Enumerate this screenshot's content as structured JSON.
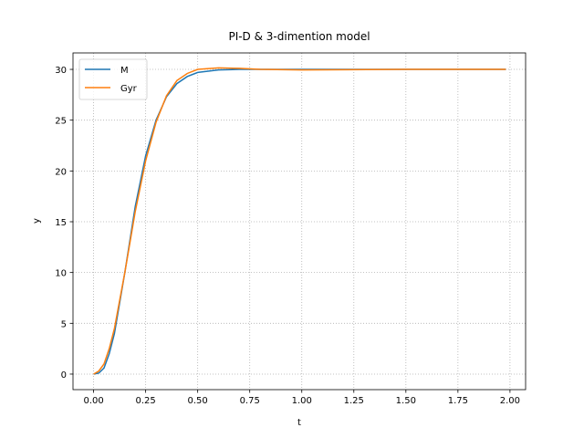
{
  "chart_data": {
    "type": "line",
    "title": "PI-D & 3-dimention model",
    "x_label": "t",
    "y_label": "y",
    "x": [
      0,
      0.025,
      0.05,
      0.075,
      0.1,
      0.15,
      0.2,
      0.25,
      0.3,
      0.35,
      0.4,
      0.45,
      0.5,
      0.6,
      0.7,
      0.8,
      1.0,
      1.5,
      1.98
    ],
    "series": [
      {
        "name": "M",
        "color": "#1f77b4",
        "values": [
          0,
          0.1,
          0.6,
          2.0,
          4.0,
          10.0,
          16.5,
          21.5,
          25.0,
          27.3,
          28.6,
          29.3,
          29.7,
          29.95,
          30.0,
          30.0,
          30.0,
          30.0,
          30.0
        ]
      },
      {
        "name": "Gyr",
        "color": "#ff7f0e",
        "values": [
          0,
          0.3,
          1.0,
          2.5,
          4.5,
          10.0,
          16.0,
          21.0,
          24.8,
          27.4,
          28.9,
          29.6,
          30.0,
          30.15,
          30.1,
          30.0,
          29.95,
          30.0,
          30.0
        ]
      }
    ],
    "xlim": [
      -0.099,
      2.075
    ],
    "ylim": [
      -1.53,
      31.62
    ],
    "xticks": [
      {
        "value": 0,
        "label": "0.00"
      },
      {
        "value": 0.25,
        "label": "0.25"
      },
      {
        "value": 0.5,
        "label": "0.50"
      },
      {
        "value": 0.75,
        "label": "0.75"
      },
      {
        "value": 1,
        "label": "1.00"
      },
      {
        "value": 1.25,
        "label": "1.25"
      },
      {
        "value": 1.5,
        "label": "1.50"
      },
      {
        "value": 1.75,
        "label": "1.75"
      },
      {
        "value": 2,
        "label": "2.00"
      }
    ],
    "yticks": [
      0,
      5,
      10,
      15,
      20,
      25,
      30
    ],
    "grid": true,
    "legend": "upper-left"
  }
}
